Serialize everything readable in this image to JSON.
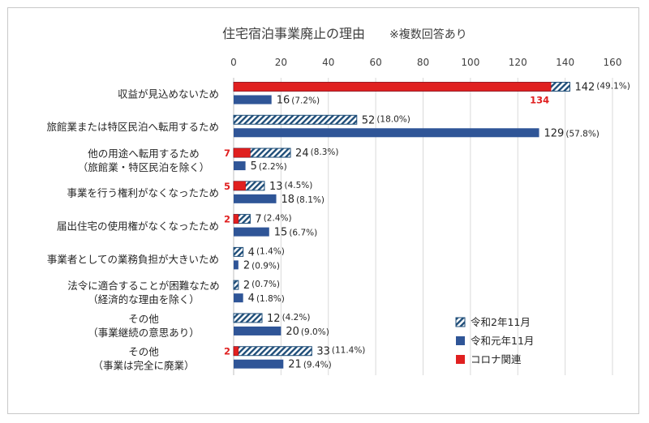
{
  "chart_data": {
    "type": "bar",
    "orientation": "horizontal",
    "title": "住宅宿泊事業廃止の理由",
    "subtitle": "※複数回答あり",
    "xlim": [
      0,
      160
    ],
    "xticks": [
      "0",
      "20",
      "40",
      "60",
      "80",
      "100",
      "120",
      "140",
      "160"
    ],
    "grid": true,
    "legend_position": "bottom-right",
    "categories": [
      [
        "収益が見込めないため"
      ],
      [
        "旅館業または特区民泊へ転用するため"
      ],
      [
        "他の用途へ転用するため",
        "（旅館業・特区民泊を除く）"
      ],
      [
        "事業を行う権利がなくなったため"
      ],
      [
        "届出住宅の使用権がなくなったため"
      ],
      [
        "事業者としての業務負担が大きいため"
      ],
      [
        "法令に適合することが困難なため",
        "（経済的な理由を除く）"
      ],
      [
        "その他",
        "（事業継続の意思あり）"
      ],
      [
        "その他",
        "（事業は完全に廃業）"
      ]
    ],
    "series": [
      {
        "name": "令和2年11月",
        "color": "#1f4e79",
        "pattern": "diagonal-hatch",
        "values": [
          142,
          52,
          24,
          13,
          7,
          4,
          2,
          12,
          33
        ],
        "labels": [
          "142",
          "52",
          "24",
          "13",
          "7",
          "4",
          "2",
          "12",
          "33"
        ],
        "pct_labels": [
          "(49.1%)",
          "(18.0%)",
          "(8.3%)",
          "(4.5%)",
          "(2.4%)",
          "(1.4%)",
          "(0.7%)",
          "(4.2%)",
          "(11.4%)"
        ]
      },
      {
        "name": "令和元年11月",
        "color": "#2f5597",
        "pattern": "solid",
        "values": [
          16,
          129,
          5,
          18,
          15,
          2,
          4,
          20,
          21
        ],
        "labels": [
          "16",
          "129",
          "5",
          "18",
          "15",
          "2",
          "4",
          "20",
          "21"
        ],
        "pct_labels": [
          "(7.2%)",
          "(57.8%)",
          "(2.2%)",
          "(8.1%)",
          "(6.7%)",
          "(0.9%)",
          "(1.8%)",
          "(9.0%)",
          "(9.4%)"
        ]
      },
      {
        "name": "コロナ関連",
        "color": "#e02020",
        "pattern": "solid",
        "overlay_on": "令和2年11月",
        "values": [
          134,
          null,
          7,
          5,
          2,
          null,
          null,
          null,
          2
        ],
        "labels": [
          "134",
          "",
          "7",
          "5",
          "2",
          "",
          "",
          "",
          "2"
        ]
      }
    ]
  }
}
